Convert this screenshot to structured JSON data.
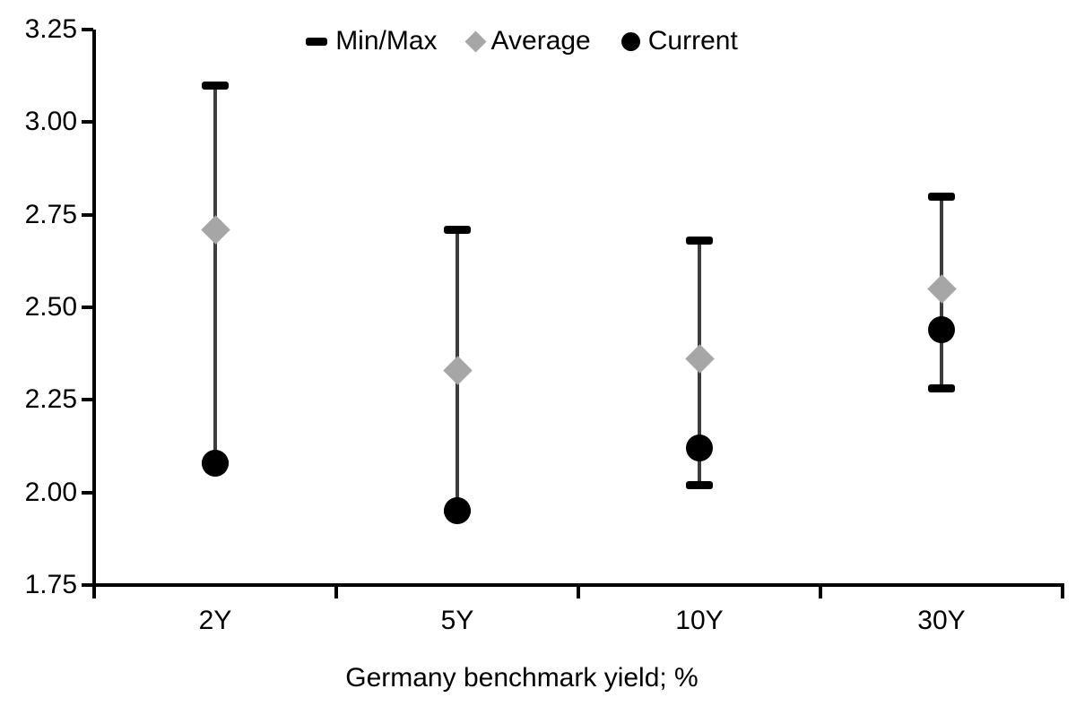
{
  "chart_data": {
    "type": "scatter",
    "subtype": "min-max-range-whisker",
    "title": "",
    "categories": [
      "2Y",
      "5Y",
      "10Y",
      "30Y"
    ],
    "series": [
      {
        "name": "Min/Max",
        "marker": "dash",
        "color": "#000000",
        "max": [
          3.1,
          2.71,
          2.68,
          2.8
        ],
        "min": [
          2.08,
          1.95,
          2.02,
          2.28
        ]
      },
      {
        "name": "Average",
        "marker": "diamond",
        "color": "#a6a6a6",
        "values": [
          2.71,
          2.33,
          2.36,
          2.55
        ]
      },
      {
        "name": "Current",
        "marker": "circle",
        "color": "#000000",
        "values": [
          2.08,
          1.95,
          2.12,
          2.44
        ]
      }
    ],
    "xlabel": "Germany benchmark yield; %",
    "ylabel": "",
    "ylim": [
      1.75,
      3.25
    ],
    "ytick_step": 0.25,
    "ytick_labels": [
      "3.25",
      "3.00",
      "2.75",
      "2.50",
      "2.25",
      "2.00",
      "1.75"
    ],
    "legend_position": "top-center",
    "grid": false,
    "colors": {
      "whisker_line": "#3d3d3d",
      "cap": "#000000",
      "average_marker": "#a6a6a6",
      "current_marker": "#000000",
      "axis": "#000000",
      "text": "#000000",
      "background": "#ffffff"
    }
  }
}
